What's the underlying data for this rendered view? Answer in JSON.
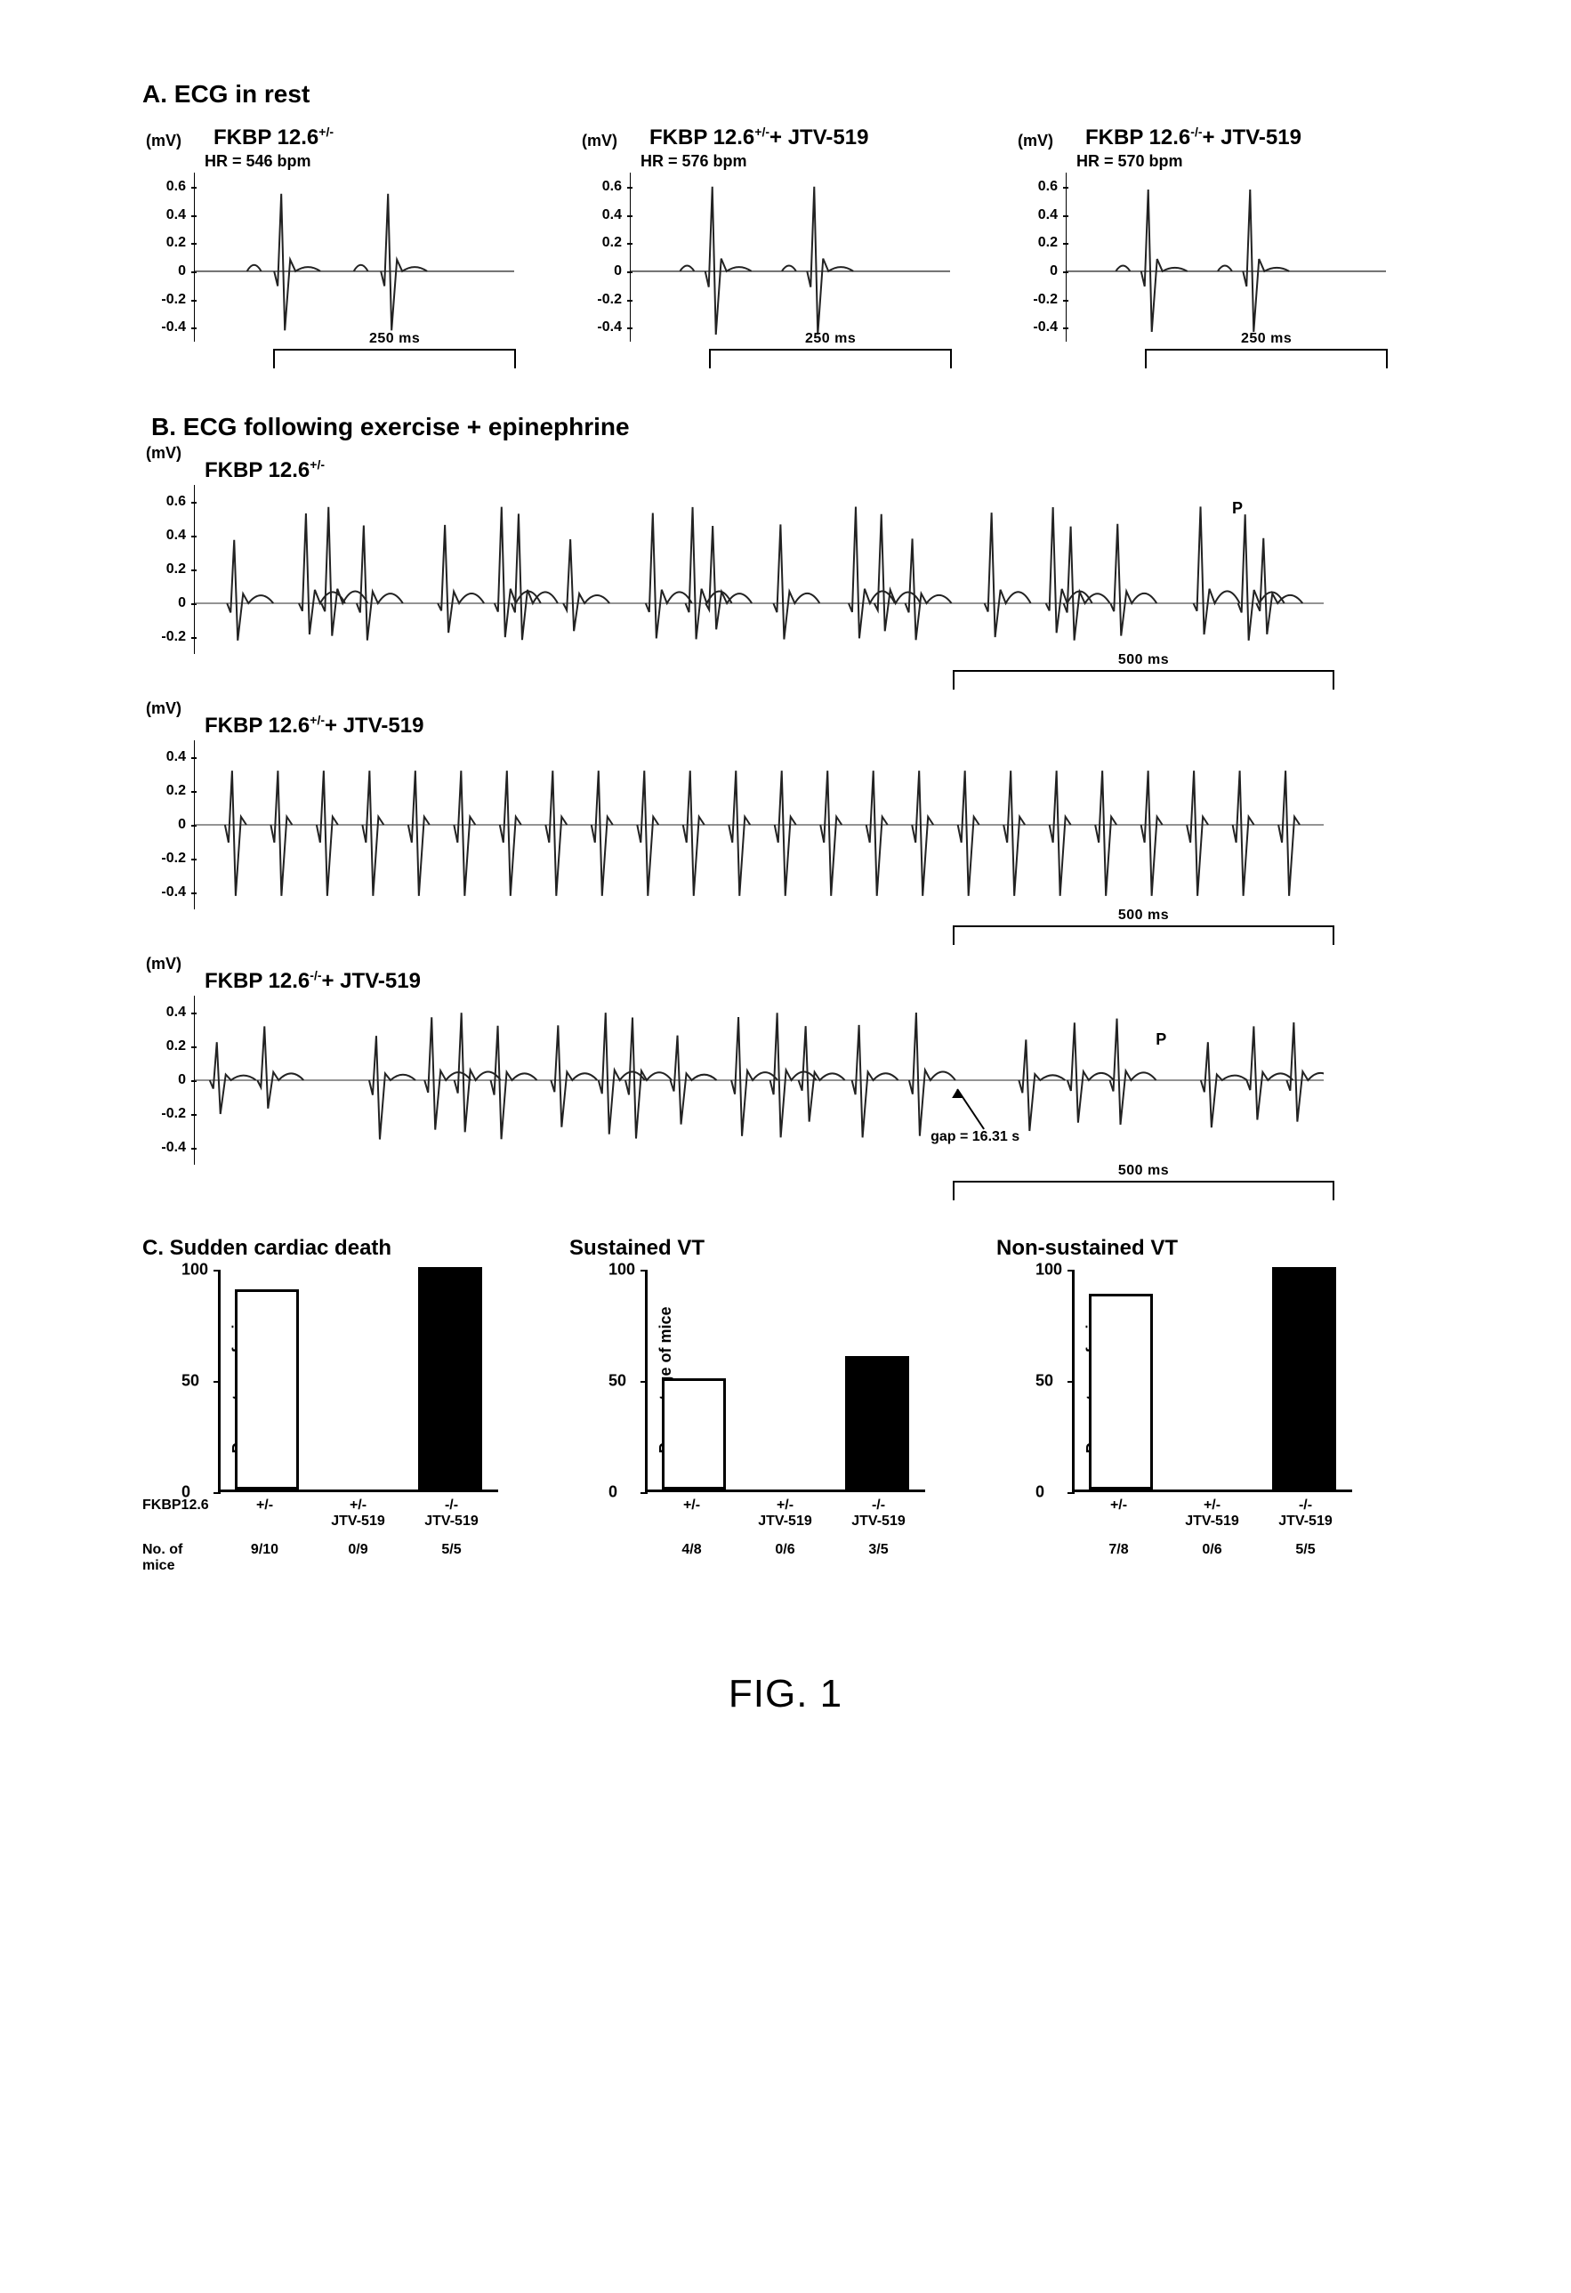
{
  "figure_label": "FIG. 1",
  "colors": {
    "black": "#000000",
    "white": "#ffffff",
    "trace": "#333333"
  },
  "panelA": {
    "title": "A.  ECG in rest",
    "y_unit": "(mV)",
    "y_ticks": [
      0.6,
      0.4,
      0.2,
      0,
      -0.2,
      -0.4
    ],
    "y_range": [
      -0.5,
      0.7
    ],
    "scale_label": "250 ms",
    "scale_ms": 250,
    "canvas_ms": 330,
    "plots": [
      {
        "title_prefix": "FKBP 12.6",
        "title_sup": "+/-",
        "title_suffix": "",
        "hr": "HR = 546 bpm",
        "beats_ms": [
          90,
          200
        ],
        "p_offset_ms": -28,
        "qrs_amp": [
          0.55,
          -0.42
        ],
        "p_amp": 0.09,
        "t_amp": 0.06
      },
      {
        "title_prefix": "FKBP 12.6",
        "title_sup": "+/-",
        "title_suffix": "+ JTV-519",
        "hr": "HR = 576 bpm",
        "beats_ms": [
          85,
          190
        ],
        "p_offset_ms": -26,
        "qrs_amp": [
          0.6,
          -0.45
        ],
        "p_amp": 0.08,
        "t_amp": 0.06
      },
      {
        "title_prefix": "FKBP 12.6",
        "title_sup": "-/-",
        "title_suffix": "+ JTV-519",
        "hr": "HR = 570 bpm",
        "beats_ms": [
          85,
          190
        ],
        "p_offset_ms": -26,
        "qrs_amp": [
          0.58,
          -0.43
        ],
        "p_amp": 0.08,
        "t_amp": 0.05
      }
    ]
  },
  "panelB": {
    "title": "B.  ECG following exercise + epinephrine",
    "y_unit": "(mV)",
    "scale_label": "500 ms",
    "scale_ms": 500,
    "canvas_ms": 1480,
    "plots": [
      {
        "title_prefix": "FKBP 12.6",
        "title_sup": "+/-",
        "title_suffix": "",
        "y_ticks": [
          0.6,
          0.4,
          0.2,
          0,
          -0.2
        ],
        "y_range": [
          -0.3,
          0.7
        ],
        "kind": "vt",
        "n_beats": 22,
        "qrs_amp": [
          0.5,
          -0.22
        ],
        "irregular": true,
        "p_marker_ms": 1360
      },
      {
        "title_prefix": "FKBP 12.6",
        "title_sup": "+/-",
        "title_suffix": "+ JTV-519",
        "y_ticks": [
          0.4,
          0.2,
          0,
          -0.2,
          -0.4
        ],
        "y_range": [
          -0.5,
          0.5
        ],
        "kind": "sinus",
        "n_beats": 24,
        "qrs_amp": [
          0.32,
          -0.42
        ],
        "irregular": false
      },
      {
        "title_prefix": "FKBP 12.6",
        "title_sup": "-/-",
        "title_suffix": "+ JTV-519",
        "y_ticks": [
          0.4,
          0.2,
          0,
          -0.2,
          -0.4
        ],
        "y_range": [
          -0.5,
          0.5
        ],
        "kind": "vt_gap",
        "gap_label": "gap = 16.31 s",
        "gap_at_ms": 1000,
        "p_marker_ms": 1260,
        "segments": [
          {
            "start_ms": 0,
            "end_ms": 120,
            "n_beats": 2,
            "qrs_amp": [
              0.3,
              -0.2
            ]
          },
          {
            "start_ms": 210,
            "end_ms": 960,
            "n_beats": 13,
            "qrs_amp": [
              0.35,
              -0.35
            ]
          },
          {
            "start_ms": 1060,
            "end_ms": 1240,
            "n_beats": 3,
            "qrs_amp": [
              0.32,
              -0.3
            ]
          },
          {
            "start_ms": 1300,
            "end_ms": 1470,
            "n_beats": 3,
            "qrs_amp": [
              0.3,
              -0.28
            ]
          }
        ]
      }
    ]
  },
  "panelC": {
    "ylabel": "Percentage of mice",
    "y_ticks": [
      0,
      50,
      100
    ],
    "y_max": 100,
    "groups": [
      "+/-",
      "+/-\nJTV-519",
      "-/-\nJTV-519"
    ],
    "row1_key": "FKBP12.6",
    "row2_key": "No. of mice",
    "bar_colors": [
      "#ffffff",
      "#ffffff",
      "#000000"
    ],
    "charts": [
      {
        "title": "C.   Sudden cardiac death",
        "values": [
          90,
          0,
          100
        ],
        "counts": [
          "9/10",
          "0/9",
          "5/5"
        ]
      },
      {
        "title": "Sustained VT",
        "values": [
          50,
          0,
          60
        ],
        "counts": [
          "4/8",
          "0/6",
          "3/5"
        ]
      },
      {
        "title": "Non-sustained VT",
        "values": [
          88,
          0,
          100
        ],
        "counts": [
          "7/8",
          "0/6",
          "5/5"
        ]
      }
    ]
  }
}
